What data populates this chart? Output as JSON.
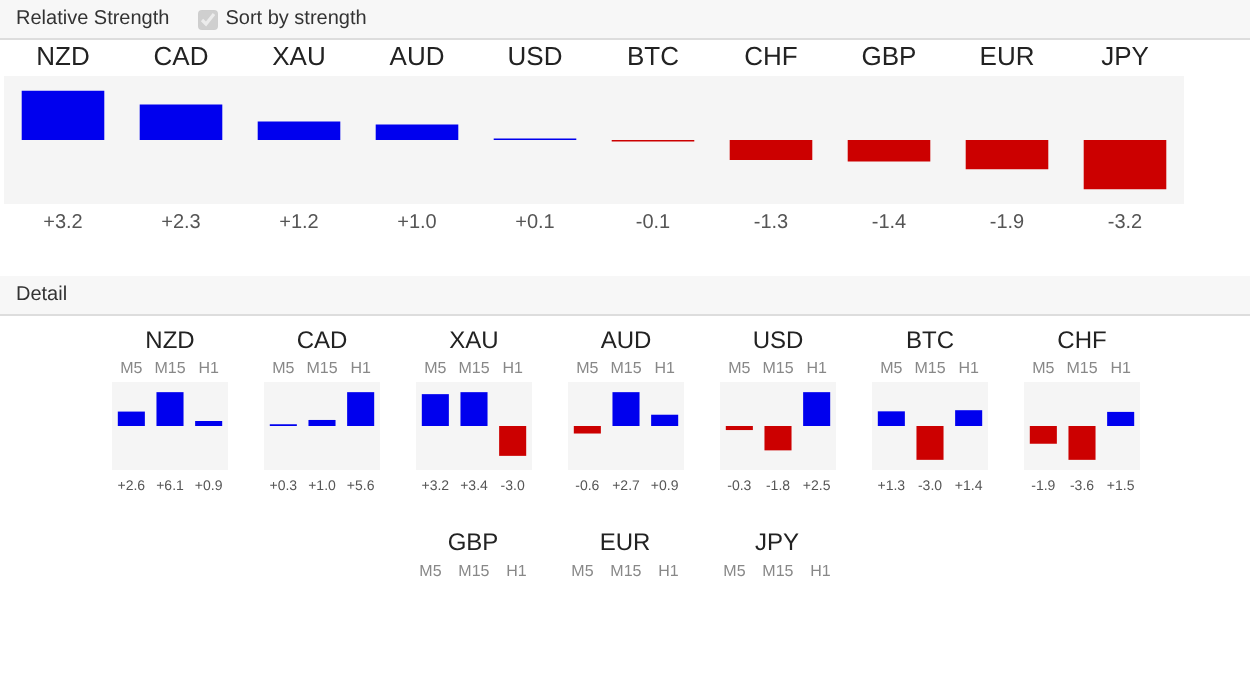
{
  "chart_data": [
    {
      "type": "bar",
      "title": "Relative Strength",
      "annotations": [
        "Sort by strength"
      ],
      "categories": [
        "NZD",
        "CAD",
        "XAU",
        "AUD",
        "USD",
        "BTC",
        "CHF",
        "GBP",
        "EUR",
        "JPY"
      ],
      "values": [
        3.2,
        2.3,
        1.2,
        1.0,
        0.1,
        -0.1,
        -1.3,
        -1.4,
        -1.9,
        -3.2
      ],
      "colors": [
        "#0000ee",
        "#0000ee",
        "#0000ee",
        "#0000ee",
        "#0000ee",
        "#cc0000",
        "#cc0000",
        "#cc0000",
        "#cc0000",
        "#cc0000"
      ],
      "value_labels": [
        "+3.2",
        "+2.3",
        "+1.2",
        "+1.0",
        "+0.1",
        "-0.1",
        "-1.3",
        "-1.4",
        "-1.9",
        "-3.2"
      ]
    },
    {
      "type": "other",
      "title": "Detail"
    },
    {
      "type": "bar",
      "title": "NZD",
      "categories": [
        "M5",
        "M15",
        "H1"
      ],
      "values": [
        2.6,
        6.1,
        0.9
      ],
      "colors": [
        "#0000ee",
        "#0000ee",
        "#0000ee"
      ],
      "value_labels": [
        "+2.6",
        "+6.1",
        "+0.9"
      ]
    },
    {
      "type": "bar",
      "title": "CAD",
      "categories": [
        "M5",
        "M15",
        "H1"
      ],
      "values": [
        0.3,
        1.0,
        5.6
      ],
      "colors": [
        "#0000ee",
        "#0000ee",
        "#0000ee"
      ],
      "value_labels": [
        "+0.3",
        "+1.0",
        "+5.6"
      ]
    },
    {
      "type": "bar",
      "title": "XAU",
      "categories": [
        "M5",
        "M15",
        "H1"
      ],
      "values": [
        3.2,
        3.4,
        -3.0
      ],
      "colors": [
        "#0000ee",
        "#0000ee",
        "#cc0000"
      ],
      "value_labels": [
        "+3.2",
        "+3.4",
        "-3.0"
      ]
    },
    {
      "type": "bar",
      "title": "AUD",
      "categories": [
        "M5",
        "M15",
        "H1"
      ],
      "values": [
        -0.6,
        2.7,
        0.9
      ],
      "colors": [
        "#cc0000",
        "#0000ee",
        "#0000ee"
      ],
      "value_labels": [
        "-0.6",
        "+2.7",
        "+0.9"
      ]
    },
    {
      "type": "bar",
      "title": "USD",
      "categories": [
        "M5",
        "M15",
        "H1"
      ],
      "values": [
        -0.3,
        -1.8,
        2.5
      ],
      "colors": [
        "#cc0000",
        "#cc0000",
        "#0000ee"
      ],
      "value_labels": [
        "-0.3",
        "-1.8",
        "+2.5"
      ]
    },
    {
      "type": "bar",
      "title": "BTC",
      "categories": [
        "M5",
        "M15",
        "H1"
      ],
      "values": [
        1.3,
        -3.0,
        1.4
      ],
      "colors": [
        "#0000ee",
        "#cc0000",
        "#0000ee"
      ],
      "value_labels": [
        "+1.3",
        "-3.0",
        "+1.4"
      ]
    },
    {
      "type": "bar",
      "title": "CHF",
      "categories": [
        "M5",
        "M15",
        "H1"
      ],
      "values": [
        -1.9,
        -3.6,
        1.5
      ],
      "colors": [
        "#cc0000",
        "#cc0000",
        "#0000ee"
      ],
      "value_labels": [
        "-1.9",
        "-3.6",
        "+1.5"
      ]
    },
    {
      "type": "other",
      "title": "GBP",
      "categories": [
        "M5",
        "M15",
        "H1"
      ]
    },
    {
      "type": "other",
      "title": "EUR",
      "categories": [
        "M5",
        "M15",
        "H1"
      ]
    },
    {
      "type": "other",
      "title": "JPY",
      "categories": [
        "M5",
        "M15",
        "H1"
      ]
    }
  ]
}
